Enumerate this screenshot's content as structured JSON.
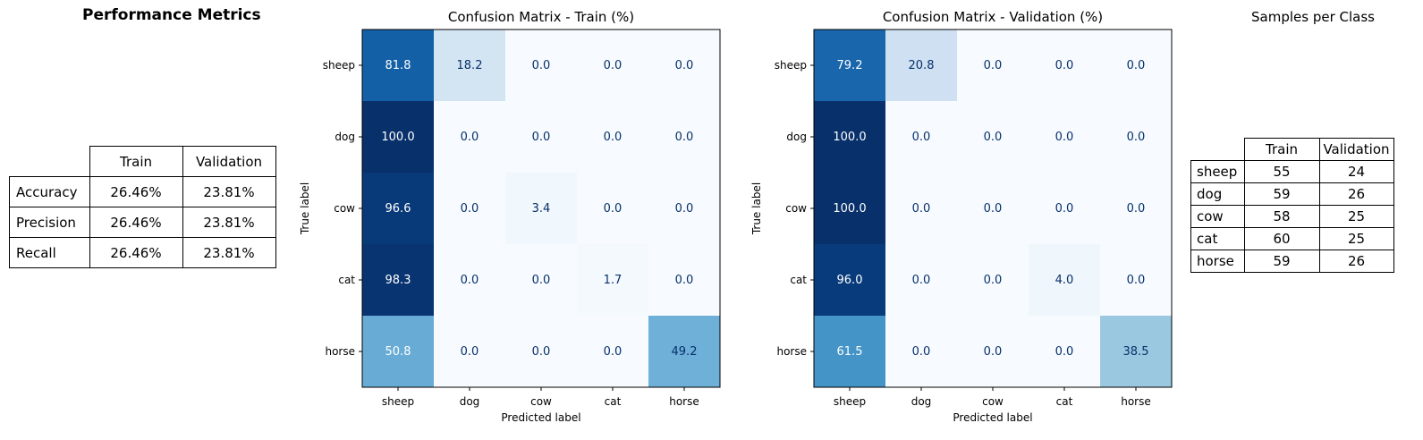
{
  "metrics": {
    "title": "Performance Metrics",
    "columns": [
      "Train",
      "Validation"
    ],
    "rows": [
      {
        "label": "Accuracy",
        "train": "26.46%",
        "validation": "23.81%"
      },
      {
        "label": "Precision",
        "train": "26.46%",
        "validation": "23.81%"
      },
      {
        "label": "Recall",
        "train": "26.46%",
        "validation": "23.81%"
      }
    ]
  },
  "samples": {
    "title": "Samples per Class",
    "columns": [
      "Train",
      "Validation"
    ],
    "rows": [
      {
        "label": "sheep",
        "train": "55",
        "validation": "24"
      },
      {
        "label": "dog",
        "train": "59",
        "validation": "26"
      },
      {
        "label": "cow",
        "train": "58",
        "validation": "25"
      },
      {
        "label": "cat",
        "train": "60",
        "validation": "25"
      },
      {
        "label": "horse",
        "train": "59",
        "validation": "26"
      }
    ]
  },
  "chart_data": [
    {
      "type": "heatmap",
      "title": "Confusion Matrix - Train (%)",
      "xlabel": "Predicted label",
      "ylabel": "True label",
      "x": [
        "sheep",
        "dog",
        "cow",
        "cat",
        "horse"
      ],
      "y": [
        "sheep",
        "dog",
        "cow",
        "cat",
        "horse"
      ],
      "values": [
        [
          81.8,
          18.2,
          0.0,
          0.0,
          0.0
        ],
        [
          100.0,
          0.0,
          0.0,
          0.0,
          0.0
        ],
        [
          96.6,
          0.0,
          3.4,
          0.0,
          0.0
        ],
        [
          98.3,
          0.0,
          0.0,
          1.7,
          0.0
        ],
        [
          50.8,
          0.0,
          0.0,
          0.0,
          49.2
        ]
      ],
      "colormap": "Blues",
      "vrange": [
        0,
        100
      ]
    },
    {
      "type": "heatmap",
      "title": "Confusion Matrix - Validation (%)",
      "xlabel": "Predicted label",
      "ylabel": "True label",
      "x": [
        "sheep",
        "dog",
        "cow",
        "cat",
        "horse"
      ],
      "y": [
        "sheep",
        "dog",
        "cow",
        "cat",
        "horse"
      ],
      "values": [
        [
          79.2,
          20.8,
          0.0,
          0.0,
          0.0
        ],
        [
          100.0,
          0.0,
          0.0,
          0.0,
          0.0
        ],
        [
          100.0,
          0.0,
          0.0,
          0.0,
          0.0
        ],
        [
          96.0,
          0.0,
          0.0,
          4.0,
          0.0
        ],
        [
          61.5,
          0.0,
          0.0,
          0.0,
          38.5
        ]
      ],
      "colormap": "Blues",
      "vrange": [
        0,
        100
      ]
    }
  ]
}
